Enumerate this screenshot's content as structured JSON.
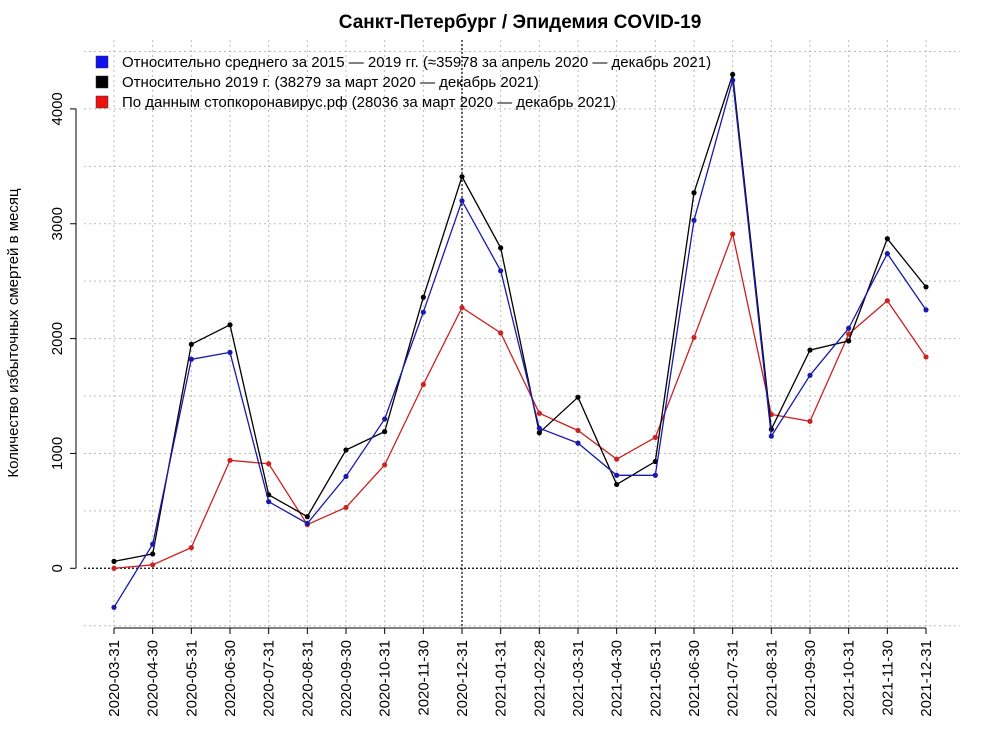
{
  "chart_data": {
    "type": "line",
    "title": "Санкт-Петербург / Эпидемия COVID-19",
    "ylabel": "Количество избыточных смертей в месяц",
    "xlabel": "",
    "ylim": [
      -520,
      4600
    ],
    "yticks": [
      0,
      1000,
      2000,
      3000,
      4000
    ],
    "grid": true,
    "legend_position": "top-left",
    "categories": [
      "2020-03-31",
      "2020-04-30",
      "2020-05-31",
      "2020-06-30",
      "2020-07-31",
      "2020-08-31",
      "2020-09-30",
      "2020-10-31",
      "2020-11-30",
      "2020-12-31",
      "2021-01-31",
      "2021-02-28",
      "2021-03-31",
      "2021-04-30",
      "2021-05-31",
      "2021-06-30",
      "2021-07-31",
      "2021-08-31",
      "2021-09-30",
      "2021-10-31",
      "2021-11-30",
      "2021-12-31"
    ],
    "vline_category": "2020-12-31",
    "series": [
      {
        "name": "Относительно среднего за 2015 — 2019 гг. (≈35978 за апрель 2020 — декабрь 2021)",
        "color": "#1a1aaa",
        "legend_color": "#1111ee",
        "values": [
          -340,
          210,
          1820,
          1880,
          580,
          390,
          800,
          1300,
          2230,
          3200,
          2590,
          1220,
          1090,
          810,
          810,
          3030,
          4250,
          1150,
          1680,
          2090,
          2740,
          2250
        ]
      },
      {
        "name": "Относительно 2019 г. (38279 за март 2020 — декабрь 2021)",
        "color": "#000000",
        "legend_color": "#000000",
        "values": [
          60,
          125,
          1950,
          2120,
          640,
          450,
          1030,
          1190,
          2360,
          3410,
          2790,
          1180,
          1490,
          730,
          930,
          3270,
          4300,
          1210,
          1900,
          1980,
          2870,
          2450
        ]
      },
      {
        "name": "По данным стопкоронавирус.рф (28036 за март 2020 — декабрь 2021)",
        "color": "#cc2222",
        "legend_color": "#ee1111",
        "values": [
          0,
          30,
          180,
          940,
          910,
          380,
          530,
          900,
          1600,
          2270,
          2050,
          1350,
          1200,
          950,
          1140,
          2010,
          2910,
          1340,
          1280,
          2040,
          2330,
          1840
        ]
      }
    ]
  }
}
